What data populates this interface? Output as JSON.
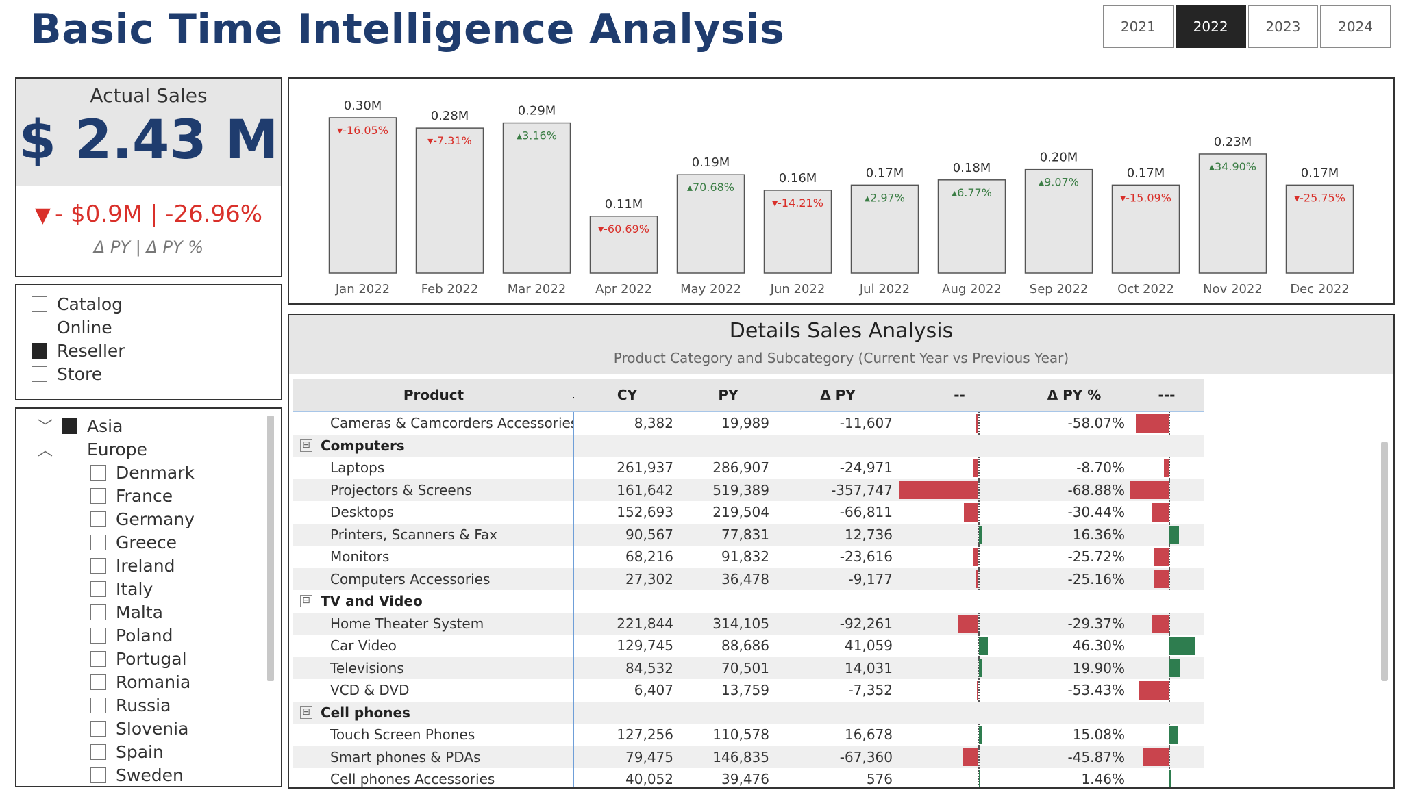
{
  "page": {
    "title": "Basic Time Intelligence Analysis"
  },
  "year_slicer": {
    "options": [
      "2021",
      "2022",
      "2023",
      "2024"
    ],
    "selected": "2022"
  },
  "kpi": {
    "label": "Actual Sales",
    "value": "$ 2.43 M",
    "delta_text": "- $0.9M | -26.96%",
    "delta_direction": "down",
    "sub_label": "Δ PY  | Δ PY %"
  },
  "channel_slicer": {
    "items": [
      {
        "label": "Catalog",
        "checked": false
      },
      {
        "label": "Online",
        "checked": false
      },
      {
        "label": "Reseller",
        "checked": true
      },
      {
        "label": "Store",
        "checked": false
      }
    ]
  },
  "geo_slicer": {
    "items": [
      {
        "label": "Asia",
        "level": 0,
        "checked": true,
        "expand": "collapsed"
      },
      {
        "label": "Europe",
        "level": 0,
        "checked": false,
        "expand": "expanded"
      },
      {
        "label": "Denmark",
        "level": 1,
        "checked": false
      },
      {
        "label": "France",
        "level": 1,
        "checked": false
      },
      {
        "label": "Germany",
        "level": 1,
        "checked": false
      },
      {
        "label": "Greece",
        "level": 1,
        "checked": false
      },
      {
        "label": "Ireland",
        "level": 1,
        "checked": false
      },
      {
        "label": "Italy",
        "level": 1,
        "checked": false
      },
      {
        "label": "Malta",
        "level": 1,
        "checked": false
      },
      {
        "label": "Poland",
        "level": 1,
        "checked": false
      },
      {
        "label": "Portugal",
        "level": 1,
        "checked": false
      },
      {
        "label": "Romania",
        "level": 1,
        "checked": false
      },
      {
        "label": "Russia",
        "level": 1,
        "checked": false
      },
      {
        "label": "Slovenia",
        "level": 1,
        "checked": false
      },
      {
        "label": "Spain",
        "level": 1,
        "checked": false
      },
      {
        "label": "Sweden",
        "level": 1,
        "checked": false
      }
    ]
  },
  "colors": {
    "accent": "#1f3c6e",
    "negative": "#d9302a",
    "positive": "#3a7d44",
    "bar_neg": "#c9444d",
    "bar_pos": "#2e7d4f",
    "bar_fill": "#e6e6e6"
  },
  "chart_data": {
    "type": "bar",
    "categories": [
      "Jan 2022",
      "Feb 2022",
      "Mar 2022",
      "Apr 2022",
      "May 2022",
      "Jun 2022",
      "Jul 2022",
      "Aug 2022",
      "Sep 2022",
      "Oct 2022",
      "Nov 2022",
      "Dec 2022"
    ],
    "values": [
      0.3,
      0.28,
      0.29,
      0.11,
      0.19,
      0.16,
      0.17,
      0.18,
      0.2,
      0.17,
      0.23,
      0.17
    ],
    "value_labels": [
      "0.30M",
      "0.28M",
      "0.29M",
      "0.11M",
      "0.19M",
      "0.16M",
      "0.17M",
      "0.18M",
      "0.20M",
      "0.17M",
      "0.23M",
      "0.17M"
    ],
    "delta_labels": [
      "-16.05%",
      "-7.31%",
      "3.16%",
      "-60.69%",
      "70.68%",
      "-14.21%",
      "2.97%",
      "6.77%",
      "9.07%",
      "-15.09%",
      "34.90%",
      "-25.75%"
    ],
    "delta_values": [
      -16.05,
      -7.31,
      3.16,
      -60.69,
      70.68,
      -14.21,
      2.97,
      6.77,
      9.07,
      -15.09,
      34.9,
      -25.75
    ],
    "ylim": [
      0,
      0.3
    ],
    "grid": false,
    "legend": "none"
  },
  "details": {
    "title": "Details Sales Analysis",
    "subtitle": "Product Category and Subcategory (Current Year vs  Previous Year)",
    "columns": {
      "product": "Product",
      "cy": "CY",
      "py": "PY",
      "dpy": "Δ PY",
      "bar1": "--",
      "dpct": "Δ PY %",
      "bar2": "---"
    },
    "rows": [
      {
        "type": "item",
        "product": "Cameras & Camcorders Accessories",
        "cy": "8,382",
        "py": "19,989",
        "dpy": "-11,607",
        "dpy_val": -11607,
        "dpct": "-58.07%",
        "dpct_val": -58.07
      },
      {
        "type": "group",
        "product": "Computers",
        "expand_symbol": "⊟"
      },
      {
        "type": "item",
        "product": "Laptops",
        "cy": "261,937",
        "py": "286,907",
        "dpy": "-24,971",
        "dpy_val": -24971,
        "dpct": "-8.70%",
        "dpct_val": -8.7
      },
      {
        "type": "item",
        "product": "Projectors & Screens",
        "cy": "161,642",
        "py": "519,389",
        "dpy": "-357,747",
        "dpy_val": -357747,
        "dpct": "-68.88%",
        "dpct_val": -68.88
      },
      {
        "type": "item",
        "product": "Desktops",
        "cy": "152,693",
        "py": "219,504",
        "dpy": "-66,811",
        "dpy_val": -66811,
        "dpct": "-30.44%",
        "dpct_val": -30.44
      },
      {
        "type": "item",
        "product": "Printers, Scanners & Fax",
        "cy": "90,567",
        "py": "77,831",
        "dpy": "12,736",
        "dpy_val": 12736,
        "dpct": "16.36%",
        "dpct_val": 16.36
      },
      {
        "type": "item",
        "product": "Monitors",
        "cy": "68,216",
        "py": "91,832",
        "dpy": "-23,616",
        "dpy_val": -23616,
        "dpct": "-25.72%",
        "dpct_val": -25.72
      },
      {
        "type": "item",
        "product": "Computers Accessories",
        "cy": "27,302",
        "py": "36,478",
        "dpy": "-9,177",
        "dpy_val": -9177,
        "dpct": "-25.16%",
        "dpct_val": -25.16
      },
      {
        "type": "group",
        "product": "TV and Video",
        "expand_symbol": "⊟"
      },
      {
        "type": "item",
        "product": "Home Theater System",
        "cy": "221,844",
        "py": "314,105",
        "dpy": "-92,261",
        "dpy_val": -92261,
        "dpct": "-29.37%",
        "dpct_val": -29.37
      },
      {
        "type": "item",
        "product": "Car Video",
        "cy": "129,745",
        "py": "88,686",
        "dpy": "41,059",
        "dpy_val": 41059,
        "dpct": "46.30%",
        "dpct_val": 46.3
      },
      {
        "type": "item",
        "product": "Televisions",
        "cy": "84,532",
        "py": "70,501",
        "dpy": "14,031",
        "dpy_val": 14031,
        "dpct": "19.90%",
        "dpct_val": 19.9
      },
      {
        "type": "item",
        "product": "VCD & DVD",
        "cy": "6,407",
        "py": "13,759",
        "dpy": "-7,352",
        "dpy_val": -7352,
        "dpct": "-53.43%",
        "dpct_val": -53.43
      },
      {
        "type": "group",
        "product": "Cell phones",
        "expand_symbol": "⊟"
      },
      {
        "type": "item",
        "product": "Touch Screen Phones",
        "cy": "127,256",
        "py": "110,578",
        "dpy": "16,678",
        "dpy_val": 16678,
        "dpct": "15.08%",
        "dpct_val": 15.08
      },
      {
        "type": "item",
        "product": "Smart phones & PDAs",
        "cy": "79,475",
        "py": "146,835",
        "dpy": "-67,360",
        "dpy_val": -67360,
        "dpct": "-45.87%",
        "dpct_val": -45.87
      },
      {
        "type": "item",
        "product": "Cell phones Accessories",
        "cy": "40,052",
        "py": "39,476",
        "dpy": "576",
        "dpy_val": 576,
        "dpct": "1.46%",
        "dpct_val": 1.46
      }
    ]
  }
}
